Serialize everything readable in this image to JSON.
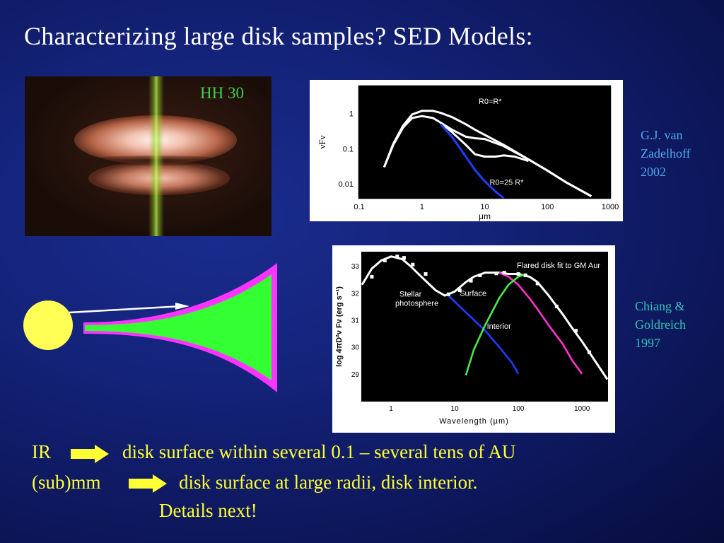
{
  "slide": {
    "title": "Characterizing large disk samples? SED Models:",
    "image_label": "HH 30",
    "credit1": [
      "G.J. van",
      "Zadelhoff",
      "2002"
    ],
    "credit2": [
      "Chiang &",
      "Goldreich",
      "1997"
    ],
    "bullet1_lead": "IR",
    "bullet1_text": "disk surface within several 0.1 – several tens of AU",
    "bullet2_lead": "(sub)mm",
    "bullet2_text": "disk surface at large radii, disk interior.",
    "bullet3_text": "Details next!",
    "colors": {
      "title": "#ffffff",
      "bullet": "#ffff33",
      "credit1": "#4fa7e8",
      "credit2": "#2fc7b8",
      "image_label": "#3fd24a",
      "star": "#ffff55",
      "disk_interior": "#33ff33",
      "disk_surface": "#ff33ff"
    }
  },
  "chart_data": [
    {
      "type": "line",
      "title": "",
      "xlabel": "μm",
      "ylabel": "νFν",
      "xscale": "log",
      "yscale": "log",
      "xlim": [
        0.1,
        1000
      ],
      "ylim": [
        0.004,
        6
      ],
      "xticks": [
        "0.1",
        "1",
        "10",
        "100",
        "1000"
      ],
      "yticks": [
        "1",
        "0.1",
        "0.01"
      ],
      "annotations": [
        "R0=R*",
        "R0=25 R*"
      ],
      "series": [
        {
          "name": "R0=R*",
          "x": [
            0.25,
            0.35,
            0.5,
            0.7,
            1,
            1.5,
            2,
            3,
            5,
            7,
            10,
            20,
            50,
            100,
            200,
            500
          ],
          "y": [
            0.03,
            0.14,
            0.45,
            0.95,
            1.2,
            1.2,
            1.05,
            0.8,
            0.5,
            0.35,
            0.25,
            0.13,
            0.05,
            0.024,
            0.011,
            0.0045
          ]
        },
        {
          "name": "",
          "x": [
            0.25,
            0.35,
            0.5,
            0.7,
            1,
            1.5,
            2,
            3,
            5,
            7,
            10,
            20,
            50,
            100,
            200,
            500
          ],
          "y": [
            0.03,
            0.13,
            0.4,
            0.75,
            0.85,
            0.75,
            0.55,
            0.35,
            0.22,
            0.2,
            0.19,
            0.12,
            0.05,
            0.024,
            0.011,
            0.0045
          ]
        },
        {
          "name": "",
          "x": [
            2,
            3,
            5,
            7,
            10,
            15,
            20,
            30,
            50
          ],
          "y": [
            0.55,
            0.3,
            0.13,
            0.07,
            0.06,
            0.06,
            0.065,
            0.06,
            0.045
          ]
        },
        {
          "name": "R0=25 R*",
          "x": [
            2,
            3,
            5,
            7,
            10,
            15,
            20
          ],
          "y": [
            0.5,
            0.22,
            0.06,
            0.025,
            0.012,
            0.006,
            0.004
          ]
        }
      ]
    },
    {
      "type": "line",
      "title": "Flared disk fit to GM Aur",
      "xlabel": "Wavelength (μm)",
      "ylabel": "log 4πD²ν Fν (erg s⁻¹)",
      "xscale": "log",
      "xlim": [
        0.35,
        2500
      ],
      "ylim": [
        28,
        33.5
      ],
      "xticks": [
        "1",
        "10",
        "100",
        "1000"
      ],
      "yticks": [
        "33",
        "32",
        "31",
        "30",
        "29"
      ],
      "annotations": [
        "Stellar",
        "photosphere",
        "Surface",
        "Interior"
      ],
      "series": [
        {
          "name": "",
          "x": [
            0.35,
            0.5,
            0.7,
            1,
            1.5,
            2,
            3,
            5,
            7,
            10,
            15,
            20,
            30,
            50,
            70,
            100,
            150,
            200,
            300,
            500,
            700,
            1000,
            2500
          ],
          "y": [
            32.3,
            32.9,
            33.2,
            33.35,
            33.25,
            33.0,
            32.6,
            32.1,
            31.9,
            32.05,
            32.4,
            32.6,
            32.75,
            32.75,
            32.7,
            32.7,
            32.6,
            32.4,
            31.9,
            31.2,
            30.7,
            30.2,
            28.8
          ]
        },
        {
          "name": "Stellar photosphere",
          "x": [
            8,
            12,
            20,
            30,
            50,
            80,
            100
          ],
          "y": [
            31.9,
            31.5,
            31.0,
            30.6,
            30.0,
            29.4,
            29.0
          ]
        },
        {
          "name": "Surface",
          "x": [
            50,
            70,
            100,
            150,
            200,
            300,
            500,
            700,
            1000
          ],
          "y": [
            32.75,
            32.6,
            32.3,
            31.8,
            31.4,
            30.8,
            30.1,
            29.5,
            29.0
          ]
        },
        {
          "name": "Interior",
          "x": [
            15,
            20,
            30,
            50,
            70,
            100,
            130
          ],
          "y": [
            28.95,
            29.9,
            30.8,
            31.8,
            32.3,
            32.6,
            32.7
          ]
        }
      ],
      "points": {
        "x": [
          0.5,
          0.8,
          1.25,
          1.6,
          2.2,
          3.5,
          8,
          12,
          18,
          25,
          45,
          60,
          100,
          130,
          200,
          400,
          800,
          1300
        ],
        "y": [
          32.6,
          33.2,
          33.35,
          33.3,
          33.05,
          32.7,
          31.95,
          32.1,
          32.45,
          32.65,
          32.72,
          32.75,
          32.7,
          32.65,
          32.35,
          31.5,
          30.6,
          29.8
        ]
      }
    }
  ]
}
